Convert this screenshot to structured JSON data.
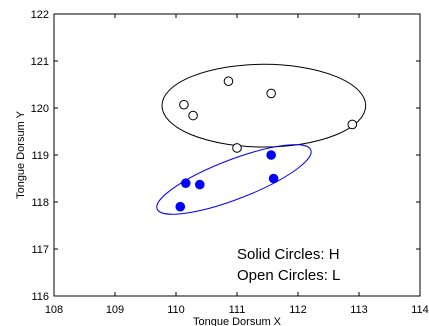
{
  "chart_data": {
    "type": "scatter",
    "title": "",
    "xlabel": "Tongue Dorsum X",
    "ylabel": "Tongue Dorsum Y",
    "xlim": [
      108,
      114
    ],
    "ylim": [
      116,
      122
    ],
    "xticks": [
      "108",
      "109",
      "110",
      "111",
      "112",
      "113",
      "114"
    ],
    "yticks": [
      "116",
      "117",
      "118",
      "119",
      "120",
      "121",
      "122"
    ],
    "grid": false,
    "series": [
      {
        "marker": "open-circle",
        "color": "#000000",
        "points": [
          {
            "x": 110.13,
            "y": 120.07
          },
          {
            "x": 110.28,
            "y": 119.84
          },
          {
            "x": 110.86,
            "y": 120.57
          },
          {
            "x": 111.56,
            "y": 120.31
          },
          {
            "x": 111.0,
            "y": 119.15
          },
          {
            "x": 112.89,
            "y": 119.65
          }
        ],
        "ellipse": {
          "cx": 111.44,
          "cy": 120.05,
          "rx": 1.67,
          "ry": 0.88,
          "angle_deg": 0
        }
      },
      {
        "marker": "solid-circle",
        "color": "#0000ff",
        "points": [
          {
            "x": 110.07,
            "y": 117.9
          },
          {
            "x": 110.16,
            "y": 118.4
          },
          {
            "x": 110.39,
            "y": 118.37
          },
          {
            "x": 111.56,
            "y": 119.0
          },
          {
            "x": 111.6,
            "y": 118.5
          }
        ],
        "ellipse": {
          "cx": 110.95,
          "cy": 118.48,
          "rx": 1.35,
          "ry": 0.42,
          "angle_deg": -21
        }
      }
    ],
    "annotations": [
      "Solid Circles: H",
      "Open Circles: L"
    ]
  }
}
